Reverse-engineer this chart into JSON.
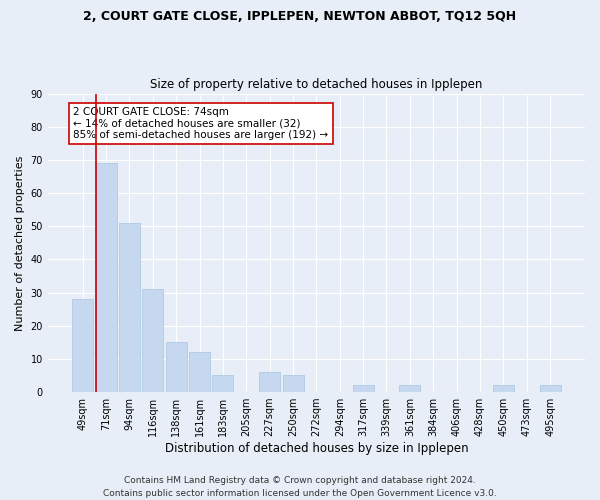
{
  "title": "2, COURT GATE CLOSE, IPPLEPEN, NEWTON ABBOT, TQ12 5QH",
  "subtitle": "Size of property relative to detached houses in Ipplepen",
  "xlabel": "Distribution of detached houses by size in Ipplepen",
  "ylabel": "Number of detached properties",
  "footer": "Contains HM Land Registry data © Crown copyright and database right 2024.\nContains public sector information licensed under the Open Government Licence v3.0.",
  "categories": [
    "49sqm",
    "71sqm",
    "94sqm",
    "116sqm",
    "138sqm",
    "161sqm",
    "183sqm",
    "205sqm",
    "227sqm",
    "250sqm",
    "272sqm",
    "294sqm",
    "317sqm",
    "339sqm",
    "361sqm",
    "384sqm",
    "406sqm",
    "428sqm",
    "450sqm",
    "473sqm",
    "495sqm"
  ],
  "values": [
    28,
    69,
    51,
    31,
    15,
    12,
    5,
    0,
    6,
    5,
    0,
    0,
    2,
    0,
    2,
    0,
    0,
    0,
    2,
    0,
    2
  ],
  "bar_color": "#c5d8f0",
  "bar_edge_color": "#a8c4e0",
  "subject_line_color": "#cc0000",
  "annotation_text": "2 COURT GATE CLOSE: 74sqm\n← 14% of detached houses are smaller (32)\n85% of semi-detached houses are larger (192) →",
  "annotation_box_color": "#ffffff",
  "annotation_box_edge_color": "#cc0000",
  "ylim": [
    0,
    90
  ],
  "yticks": [
    0,
    10,
    20,
    30,
    40,
    50,
    60,
    70,
    80,
    90
  ],
  "background_color": "#e8eef7",
  "grid_color": "#ffffff",
  "title_fontsize": 9,
  "subtitle_fontsize": 8.5,
  "ylabel_fontsize": 8,
  "xlabel_fontsize": 8.5,
  "tick_fontsize": 7,
  "footer_fontsize": 6.5,
  "annotation_fontsize": 7.5
}
